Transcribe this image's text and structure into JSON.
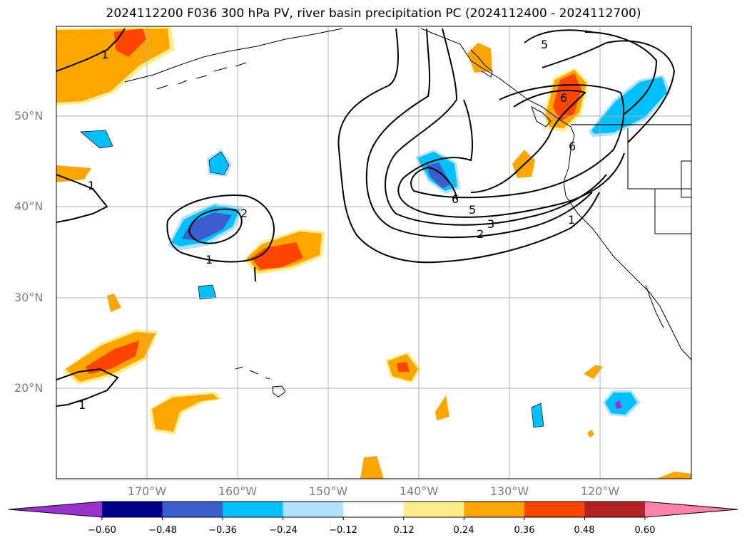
{
  "title": "2024112200 F036 300 hPa PV, river basin precipitation PC (2024112400 - 2024112700)",
  "map": {
    "lat_labels": [
      "50°N",
      "40°N",
      "30°N",
      "20°N"
    ],
    "lon_labels": [
      "170°W",
      "160°W",
      "150°W",
      "140°W",
      "130°W",
      "120°W"
    ],
    "contour_labels": [
      "1",
      "1",
      "1",
      "1",
      "1",
      "2",
      "3",
      "5",
      "5",
      "6",
      "6",
      "6",
      "2"
    ]
  },
  "colorbar": {
    "ticks": [
      "−0.60",
      "−0.48",
      "−0.36",
      "−0.24",
      "−0.12",
      "0.12",
      "0.24",
      "0.36",
      "0.48",
      "0.60"
    ],
    "colors": [
      "#9932cc",
      "#00008b",
      "#3a5fcd",
      "#00bfff",
      "#b0e2ff",
      "#ffffff",
      "#ffec8b",
      "#ffa500",
      "#ff4500",
      "#b22222",
      "#ff82ab"
    ]
  },
  "colors": {
    "grid": "#b0b0b0",
    "coast": "#000000"
  }
}
